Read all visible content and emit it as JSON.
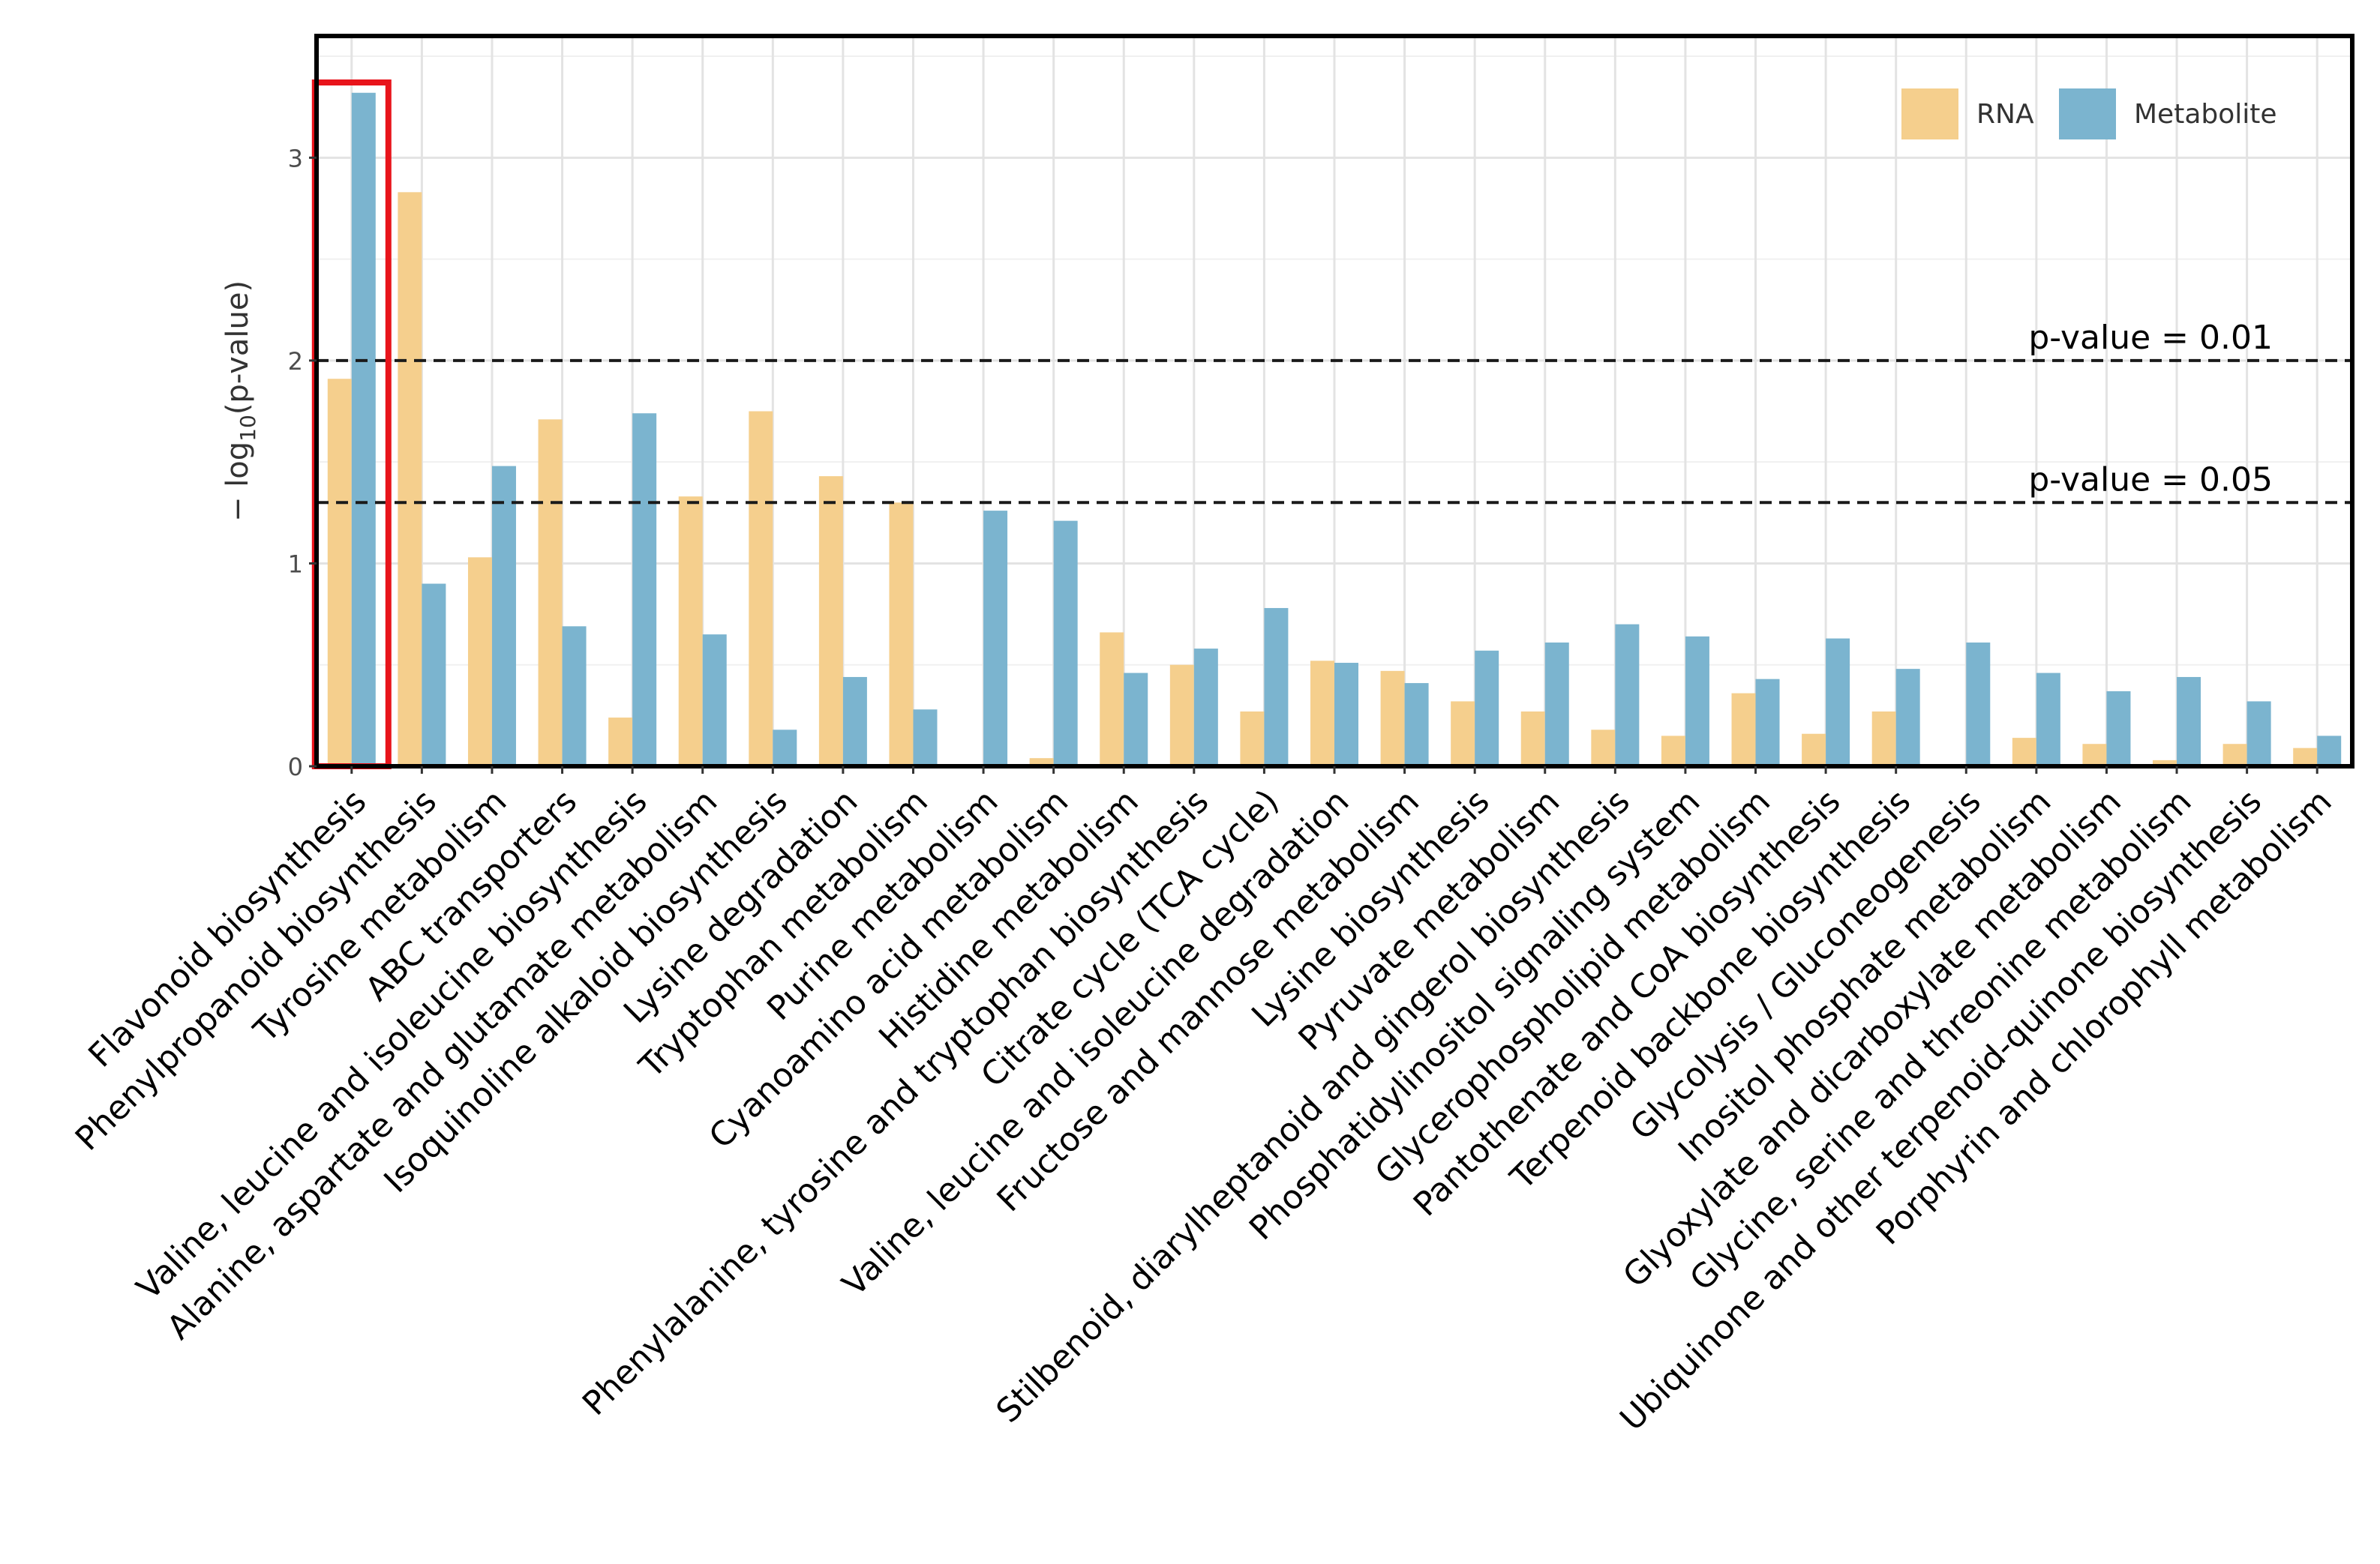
{
  "chart_data": {
    "type": "bar",
    "title": "",
    "xlabel": "",
    "ylabel": "− log10(p-value)",
    "ylabel_parts": {
      "prefix": "− log",
      "subscript": "10",
      "suffix": "(p-value)"
    },
    "ylim": [
      0,
      3.6
    ],
    "yticks": [
      0,
      1,
      2,
      3
    ],
    "grid": true,
    "legend_position": "top-right",
    "categories": [
      "Flavonoid biosynthesis",
      "Phenylpropanoid biosynthesis",
      "Tyrosine metabolism",
      "ABC transporters",
      "Valine, leucine and isoleucine biosynthesis",
      "Alanine, aspartate and glutamate metabolism",
      "Isoquinoline alkaloid biosynthesis",
      "Lysine degradation",
      "Tryptophan metabolism",
      "Purine metabolism",
      "Cyanoamino acid metabolism",
      "Histidine metabolism",
      "Phenylalanine, tyrosine and tryptophan biosynthesis",
      "Citrate cycle (TCA cycle)",
      "Valine, leucine and isoleucine degradation",
      "Fructose and mannose metabolism",
      "Lysine biosynthesis",
      "Pyruvate metabolism",
      "Stilbenoid, diarylheptanoid and gingerol biosynthesis",
      "Phosphatidylinositol signaling system",
      "Glycerophospholipid metabolism",
      "Pantothenate and CoA biosynthesis",
      "Terpenoid backbone biosynthesis",
      "Glycolysis / Gluconeogenesis",
      "Inositol phosphate metabolism",
      "Glyoxylate and dicarboxylate metabolism",
      "Glycine, serine and threonine metabolism",
      "Ubiquinone and other terpenoid-quinone biosynthesis",
      "Porphyrin and chlorophyll metabolism"
    ],
    "series": [
      {
        "name": "RNA",
        "color": "#F5CF8D",
        "values": [
          1.91,
          2.83,
          1.03,
          1.71,
          0.24,
          1.33,
          1.75,
          1.43,
          1.3,
          0.0,
          0.04,
          0.66,
          0.5,
          0.27,
          0.52,
          0.47,
          0.32,
          0.27,
          0.18,
          0.15,
          0.36,
          0.16,
          0.27,
          0.0,
          0.14,
          0.11,
          0.03,
          0.11,
          0.09
        ]
      },
      {
        "name": "Metabolite",
        "color": "#7BB4CF",
        "values": [
          3.32,
          0.9,
          1.48,
          0.69,
          1.74,
          0.65,
          0.18,
          0.44,
          0.28,
          1.26,
          1.21,
          0.46,
          0.58,
          0.78,
          0.51,
          0.41,
          0.57,
          0.61,
          0.7,
          0.64,
          0.43,
          0.63,
          0.48,
          0.61,
          0.46,
          0.37,
          0.44,
          0.32,
          0.15
        ]
      }
    ],
    "reference_lines": [
      {
        "label": "p-value = 0.01",
        "y": 2.0
      },
      {
        "label": "p-value = 0.05",
        "y": 1.3
      }
    ],
    "highlight": {
      "category": "Flavonoid biosynthesis",
      "color": "#E8141B"
    }
  }
}
